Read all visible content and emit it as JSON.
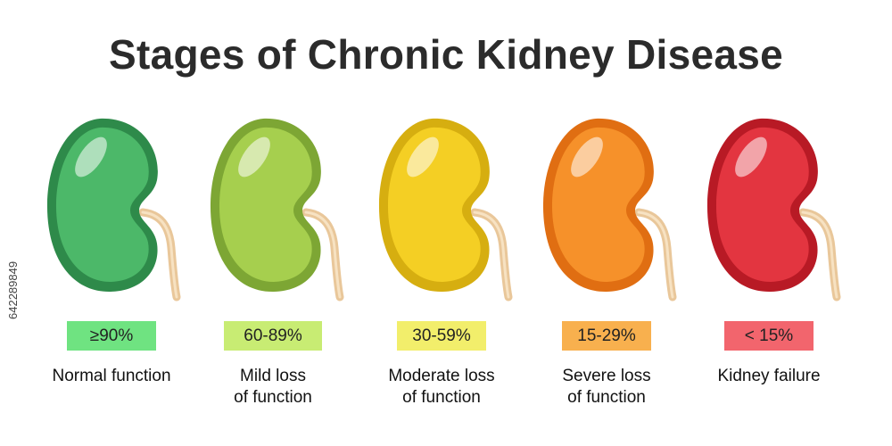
{
  "title": "Stages of Chronic Kidney Disease",
  "side_id": "642289849",
  "stages": [
    {
      "range": "≥90%",
      "label": "Normal function",
      "color": "#4cb869",
      "dark": "#2e8a4a",
      "badge": "#6fe381"
    },
    {
      "range": "60-89%",
      "label": "Mild loss\nof function",
      "color": "#a6cf4e",
      "dark": "#7da634",
      "badge": "#c8ec73"
    },
    {
      "range": "30-59%",
      "label": "Moderate loss\nof function",
      "color": "#f4cf24",
      "dark": "#d6ae10",
      "badge": "#f2ee6b"
    },
    {
      "range": "15-29%",
      "label": "Severe loss\nof function",
      "color": "#f6912a",
      "dark": "#e06e12",
      "badge": "#f8b04e"
    },
    {
      "range": "< 15%",
      "label": "Kidney failure",
      "color": "#e33540",
      "dark": "#b81a25",
      "badge": "#f2656d"
    }
  ]
}
